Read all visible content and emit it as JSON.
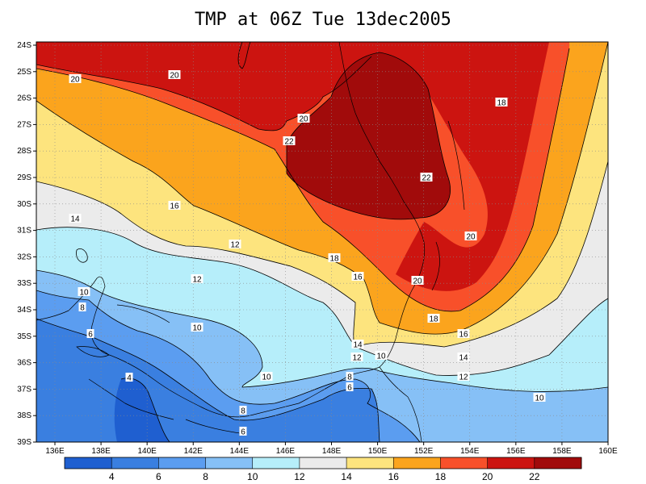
{
  "title": "TMP at 06Z Tue 13dec2005",
  "map": {
    "lon_labels": [
      "136E",
      "138E",
      "140E",
      "142E",
      "144E",
      "146E",
      "148E",
      "150E",
      "152E",
      "154E",
      "156E",
      "158E",
      "160E"
    ],
    "lat_labels": [
      "24S",
      "25S",
      "26S",
      "27S",
      "28S",
      "29S",
      "30S",
      "31S",
      "32S",
      "33S",
      "34S",
      "35S",
      "36S",
      "37S",
      "38S",
      "39S"
    ]
  },
  "contour_labels": [
    "20",
    "20",
    "20",
    "22",
    "22",
    "18",
    "16",
    "14",
    "18",
    "16",
    "20",
    "20",
    "12",
    "12",
    "10",
    "8",
    "6",
    "4",
    "10",
    "10",
    "8",
    "6",
    "14",
    "12",
    "10",
    "8",
    "6",
    "18",
    "16",
    "14",
    "12",
    "10"
  ],
  "colorbar": {
    "ticks": [
      "4",
      "6",
      "8",
      "10",
      "12",
      "14",
      "16",
      "18",
      "20",
      "22"
    ],
    "colors": [
      "#1f5fd0",
      "#3a7fe0",
      "#5b9df0",
      "#86c0f6",
      "#b6eefa",
      "#ebebeb",
      "#fde47e",
      "#fba41d",
      "#f8502a",
      "#cc1410",
      "#a10b0b"
    ]
  },
  "colors": {
    "c1": "#1f5fd0",
    "c2": "#3a7fe0",
    "c3": "#5b9df0",
    "c4": "#86c0f6",
    "c5": "#b6eefa",
    "c6": "#ebebeb",
    "c7": "#fde47e",
    "c8": "#fba41d",
    "c9": "#f8502a",
    "c10": "#cc1410",
    "c11": "#a10b0b"
  }
}
